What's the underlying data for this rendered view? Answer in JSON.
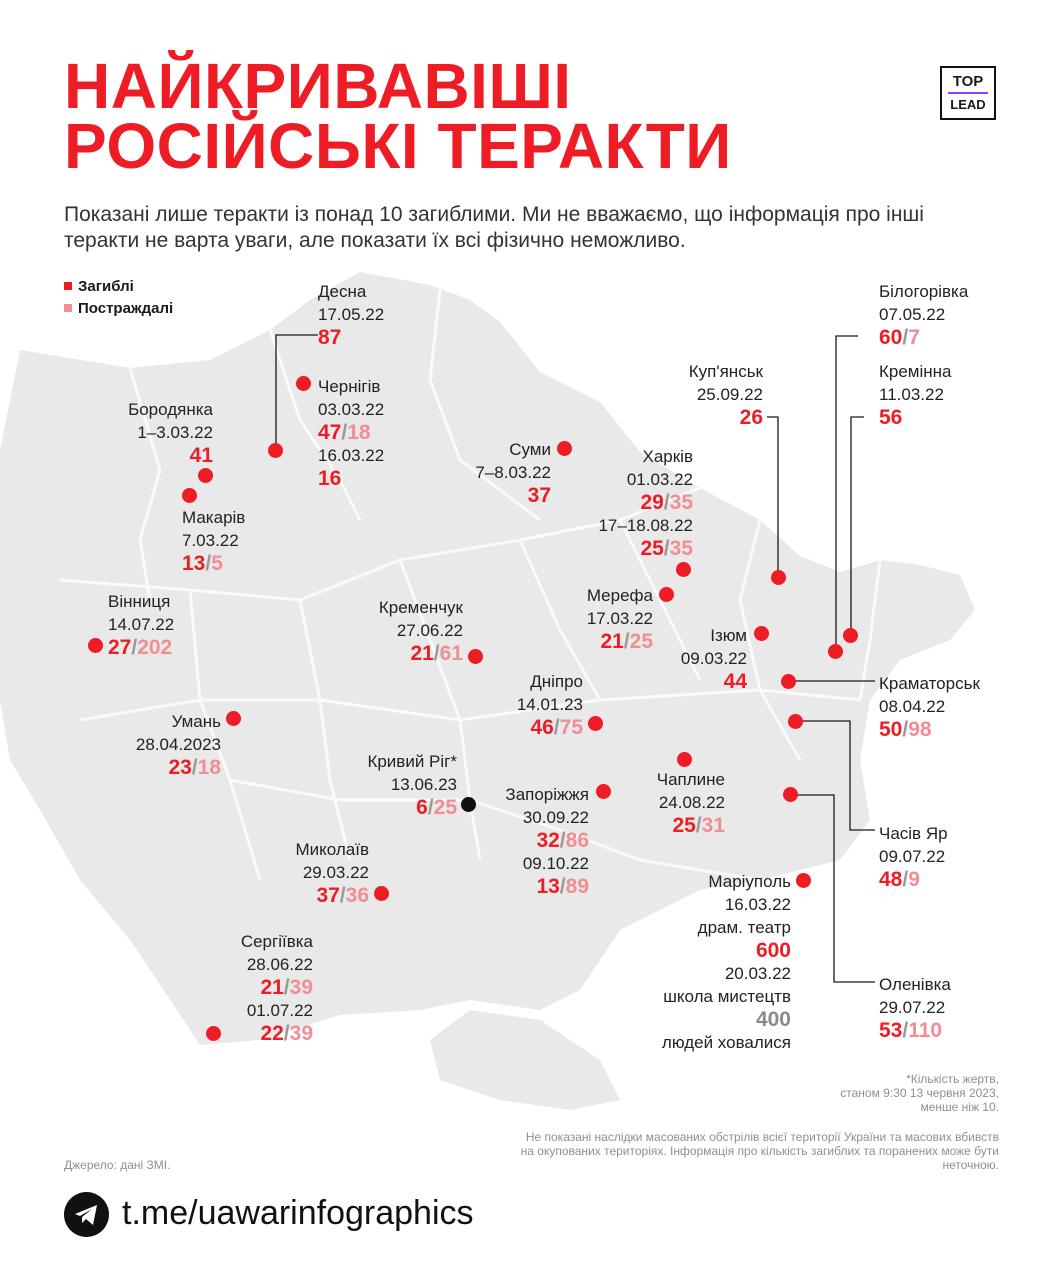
{
  "title": {
    "line1": "НАЙКРИВАВІШІ",
    "line2": "РОСІЙСЬКІ ТЕРАКТИ"
  },
  "logo": {
    "line1": "TOP",
    "line2": "LEAD"
  },
  "subtitle": "Показані лише теракти із понад 10 загиблими. Ми не вважаємо, що інформація про інші теракти не варта уваги, але показати їх всі фізично неможливо.",
  "legend": {
    "killed": "Загиблі",
    "injured": "Постраждалі",
    "killed_color": "#ee1c25",
    "injured_color": "#f08e93"
  },
  "attacks": {
    "desna": {
      "city": "Десна",
      "date": "17.05.22",
      "killed": "87"
    },
    "chernihiv": {
      "city": "Чернігів",
      "date1": "03.03.22",
      "killed1": "47",
      "injured1": "18",
      "date2": "16.03.22",
      "killed2": "16"
    },
    "borodianka": {
      "city": "Бородянка",
      "date": "1–3.03.22",
      "killed": "41"
    },
    "makariv": {
      "city": "Макарів",
      "date": "7.03.22",
      "killed": "13",
      "injured": "5"
    },
    "sumy": {
      "city": "Суми",
      "date": "7–8.03.22",
      "killed": "37"
    },
    "kupiansk": {
      "city": "Куп'янськ",
      "date": "25.09.22",
      "killed": "26"
    },
    "kharkiv": {
      "city": "Харків",
      "date1": "01.03.22",
      "killed1": "29",
      "injured1": "35",
      "date2": "17–18.08.22",
      "killed2": "25",
      "injured2": "35"
    },
    "bilohorivka": {
      "city": "Білогорівка",
      "date": "07.05.22",
      "killed": "60",
      "injured": "7"
    },
    "kreminna": {
      "city": "Кремінна",
      "date": "11.03.22",
      "killed": "56"
    },
    "vinnytsia": {
      "city": "Вінниця",
      "date": "14.07.22",
      "killed": "27",
      "injured": "202"
    },
    "kremenchuk": {
      "city": "Кременчук",
      "date": "27.06.22",
      "killed": "21",
      "injured": "61"
    },
    "merefa": {
      "city": "Мерефа",
      "date": "17.03.22",
      "killed": "21",
      "injured": "25"
    },
    "izium": {
      "city": "Ізюм",
      "date": "09.03.22",
      "killed": "44"
    },
    "kramatorsk": {
      "city": "Краматорськ",
      "date": "08.04.22",
      "killed": "50",
      "injured": "98"
    },
    "dnipro": {
      "city": "Дніпро",
      "date": "14.01.23",
      "killed": "46",
      "injured": "75"
    },
    "uman": {
      "city": "Умань",
      "date": "28.04.2023",
      "killed": "23",
      "injured": "18"
    },
    "kryvyi_rih": {
      "city": "Кривий Ріг*",
      "date": "13.06.23",
      "killed": "6",
      "injured": "25"
    },
    "zaporizhzhia": {
      "city": "Запоріжжя",
      "date1": "30.09.22",
      "killed1": "32",
      "injured1": "86",
      "date2": "09.10.22",
      "killed2": "13",
      "injured2": "89"
    },
    "chaplyne": {
      "city": "Чаплине",
      "date": "24.08.22",
      "killed": "25",
      "injured": "31"
    },
    "chasiv_yar": {
      "city": "Часів Яр",
      "date": "09.07.22",
      "killed": "48",
      "injured": "9"
    },
    "mykolaiv": {
      "city": "Миколаїв",
      "date": "29.03.22",
      "killed": "37",
      "injured": "36"
    },
    "mariupol": {
      "city": "Маріуполь",
      "date1": "16.03.22",
      "note1": "драм. театр",
      "value1": "600",
      "date2": "20.03.22",
      "note2": "школа мистецтв",
      "value2": "400",
      "note3": "людей ховалися"
    },
    "serhiivka": {
      "city": "Сергіївка",
      "date1": "28.06.22",
      "killed1": "21",
      "injured1": "39",
      "date2": "01.07.22",
      "killed2": "22",
      "injured2": "39"
    },
    "olenivka": {
      "city": "Оленівка",
      "date": "29.07.22",
      "killed": "53",
      "injured": "110"
    }
  },
  "footnote": {
    "line1": "*Кількість жертв,",
    "line2": "станом 9:30 13 червня 2023,",
    "line3": "менше ніж 10."
  },
  "disclaimer": "Не показані наслідки масованих обстрілів всієї території України та масових вбивств на окупованих територіях. Інформація про кількість загиблих та поранених може бути неточною.",
  "source": "Джерело: дані ЗМІ.",
  "telegram": {
    "link": "t.me/uawarinfographics",
    "icon": "telegram-icon"
  }
}
